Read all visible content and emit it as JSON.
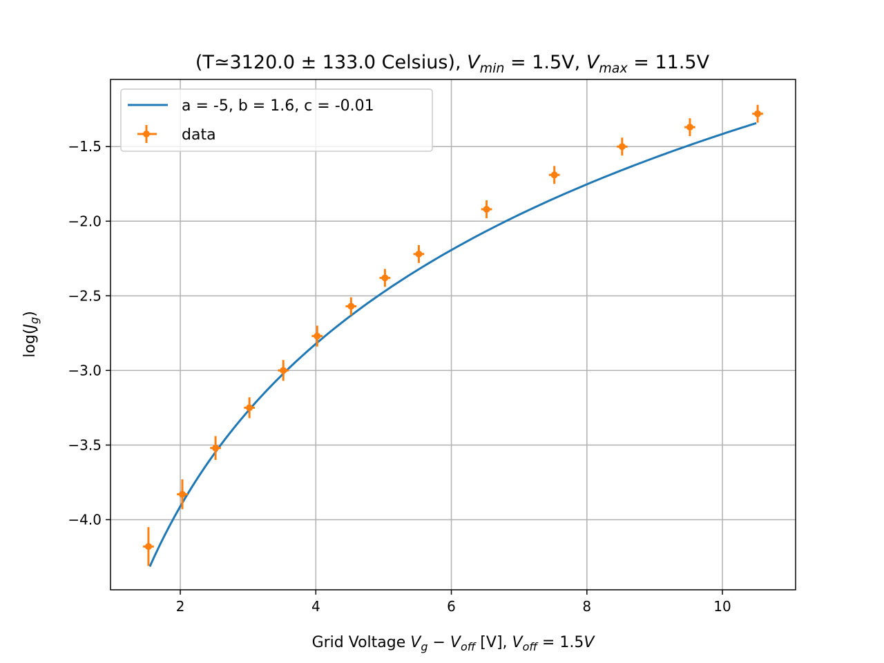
{
  "chart_data": {
    "type": "scatter",
    "title": {
      "prefix": "(T≃",
      "temperature": "3120.0 ± 133.0 Celsius",
      "middle": "), ",
      "vmin_symbol": "V",
      "vmin_sub": "min",
      "vmin_value": " = 1.5V, ",
      "vmax_symbol": "V",
      "vmax_sub": "max",
      "vmax_value": " = 11.5V"
    },
    "xlabel": {
      "prefix": "Grid Voltage ",
      "vg_symbol": "V",
      "vg_sub": "g",
      "minus": " − ",
      "voff_symbol": "V",
      "voff_sub": "off",
      "unit": " [V], ",
      "voff2_symbol": "V",
      "voff2_sub": "off",
      "equals": " = 1.5",
      "suffix_symbol": "V"
    },
    "ylabel": {
      "prefix": "log(",
      "symbol": "J",
      "sub": "g",
      "suffix": ")"
    },
    "xlim": [
      0.97,
      11.08
    ],
    "ylim": [
      -4.47,
      -1.05
    ],
    "xticks": [
      2,
      4,
      6,
      8,
      10
    ],
    "xtick_labels": [
      "2",
      "4",
      "6",
      "8",
      "10"
    ],
    "yticks": [
      -4.0,
      -3.5,
      -3.0,
      -2.5,
      -2.0,
      -1.5
    ],
    "ytick_labels": [
      "−4.0",
      "−3.5",
      "−3.0",
      "−2.5",
      "−2.0",
      "−1.5"
    ],
    "grid": true,
    "legend_placement": "top-left",
    "series": [
      {
        "name": "a = -5, b = 1.6, c = -0.01",
        "kind": "line",
        "color": "#1f77b4",
        "a": -5,
        "b": 1.6,
        "c": -0.01,
        "x_range": [
          1.55,
          10.5
        ]
      },
      {
        "name": "data",
        "kind": "errorbar",
        "color": "#ff7f0e",
        "points": [
          {
            "x": 1.53,
            "y": -4.18,
            "xerr": 0.08,
            "yerr": 0.13
          },
          {
            "x": 2.03,
            "y": -3.83,
            "xerr": 0.08,
            "yerr": 0.1
          },
          {
            "x": 2.52,
            "y": -3.52,
            "xerr": 0.08,
            "yerr": 0.08
          },
          {
            "x": 3.02,
            "y": -3.25,
            "xerr": 0.08,
            "yerr": 0.07
          },
          {
            "x": 3.52,
            "y": -3.0,
            "xerr": 0.08,
            "yerr": 0.07
          },
          {
            "x": 4.02,
            "y": -2.77,
            "xerr": 0.08,
            "yerr": 0.07
          },
          {
            "x": 4.52,
            "y": -2.57,
            "xerr": 0.08,
            "yerr": 0.06
          },
          {
            "x": 5.02,
            "y": -2.38,
            "xerr": 0.08,
            "yerr": 0.06
          },
          {
            "x": 5.52,
            "y": -2.22,
            "xerr": 0.08,
            "yerr": 0.06
          },
          {
            "x": 6.52,
            "y": -1.92,
            "xerr": 0.08,
            "yerr": 0.06
          },
          {
            "x": 7.52,
            "y": -1.69,
            "xerr": 0.08,
            "yerr": 0.06
          },
          {
            "x": 8.52,
            "y": -1.5,
            "xerr": 0.08,
            "yerr": 0.06
          },
          {
            "x": 9.52,
            "y": -1.37,
            "xerr": 0.08,
            "yerr": 0.06
          },
          {
            "x": 10.52,
            "y": -1.28,
            "xerr": 0.08,
            "yerr": 0.06
          }
        ]
      }
    ]
  }
}
